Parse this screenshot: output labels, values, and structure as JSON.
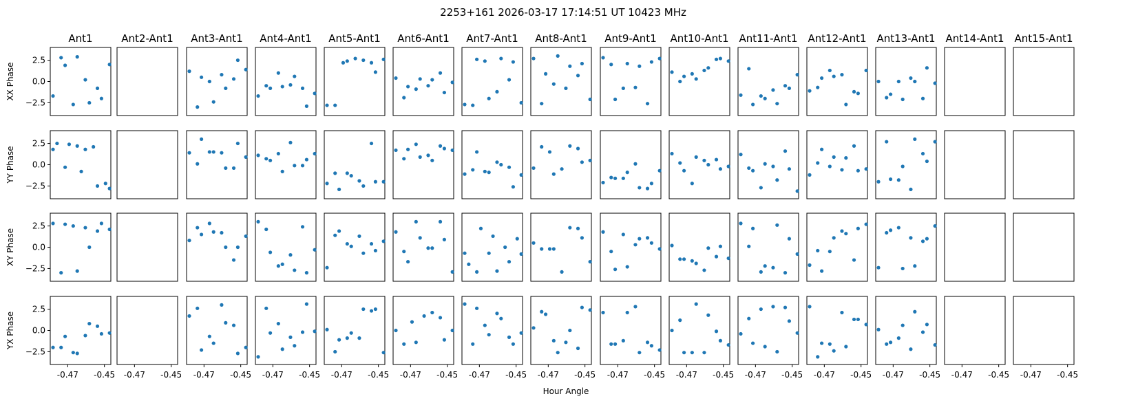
{
  "figure": {
    "title": "2253+161  2026-03-17 17:14:51 UT  10423 MHz",
    "xlabel": "Hour Angle"
  },
  "chart_data": {
    "type": "scatter",
    "point_color": "#1f77b4",
    "columns": [
      "Ant1",
      "Ant2-Ant1",
      "Ant3-Ant1",
      "Ant4-Ant1",
      "Ant5-Ant1",
      "Ant6-Ant1",
      "Ant7-Ant1",
      "Ant8-Ant1",
      "Ant9-Ant1",
      "Ant10-Ant1",
      "Ant11-Ant1",
      "Ant12-Ant1",
      "Ant13-Ant1",
      "Ant14-Ant1",
      "Ant15-Ant1"
    ],
    "rows": [
      "XX Phase",
      "YY Phase",
      "XY Phase",
      "YX Phase"
    ],
    "x": [
      -0.478,
      -0.4758,
      -0.4736,
      -0.4714,
      -0.4692,
      -0.467,
      -0.4648,
      -0.4626,
      -0.4604,
      -0.4582,
      -0.456,
      -0.4538,
      -0.4516,
      -0.4494,
      -0.4472
    ],
    "xlim": [
      -0.4795,
      -0.4465
    ],
    "ylim": [
      -4.0,
      4.0
    ],
    "xticks": [
      -0.47,
      -0.45
    ],
    "xtick_labels": [
      "-0.47",
      "-0.45"
    ],
    "yticks": [
      2.5,
      0.0,
      -2.5
    ],
    "ytick_labels": [
      "2.5",
      "0.0",
      "−2.5"
    ],
    "panels": [
      [
        [
          -1.7,
          2.8,
          1.9,
          -2.7,
          2.9,
          0.2,
          -2.5,
          -0.8,
          -2.0,
          2.0
        ],
        [],
        [
          1.2,
          -3.0,
          0.5,
          0.0,
          -2.4,
          0.8,
          -0.8,
          0.3,
          2.5,
          1.4
        ],
        [
          -1.7,
          -0.5,
          -0.8,
          1.0,
          -0.6,
          -0.4,
          0.6,
          -0.8,
          -2.9,
          -1.4
        ],
        [
          -2.8,
          -2.8,
          2.2,
          2.4,
          2.7,
          2.5,
          2.2,
          1.1,
          2.6
        ],
        [
          0.4,
          -1.9,
          -0.6,
          -0.9,
          0.3,
          -0.5,
          0.2,
          1.0,
          -1.3,
          -0.1
        ],
        [
          -2.7,
          -2.8,
          2.6,
          2.4,
          -2.0,
          -1.2,
          2.7,
          0.2,
          2.3,
          -2.5
        ],
        [
          2.7,
          -2.6,
          0.9,
          -0.3,
          3.0,
          -0.8,
          1.8,
          0.7,
          2.1,
          -2.1
        ],
        [
          2.8,
          2.0,
          -2.1,
          -0.8,
          2.1,
          -0.7,
          1.8,
          -2.6,
          2.3,
          2.7
        ],
        [
          1.1,
          0.0,
          0.6,
          0.9,
          0.3,
          1.3,
          1.6,
          2.6,
          2.7,
          2.4
        ],
        [
          -1.6,
          1.5,
          -2.7,
          -1.7,
          -2.0,
          -1.0,
          -2.6,
          -0.5,
          -0.8,
          0.8
        ],
        [
          -1.1,
          -0.7,
          0.4,
          1.3,
          0.6,
          0.8,
          -2.7,
          -1.2,
          -1.4,
          1.3
        ],
        [
          0.0,
          -1.9,
          -1.5,
          0.0,
          -2.1,
          0.4,
          0.0,
          -2.0,
          1.6,
          -0.2
        ],
        [],
        []
      ],
      [
        [
          1.8,
          2.5,
          -0.3,
          2.4,
          2.2,
          -0.8,
          1.8,
          2.1,
          -2.5,
          -2.2,
          -2.8
        ],
        [],
        [
          1.4,
          0.1,
          3.0,
          1.5,
          1.5,
          1.4,
          -0.4,
          -0.4,
          2.5,
          0.9
        ],
        [
          1.1,
          0.7,
          0.5,
          1.3,
          -0.8,
          2.6,
          -0.1,
          -0.1,
          0.6,
          1.3
        ],
        [
          -2.2,
          -1.0,
          -2.9,
          -1.0,
          -1.3,
          -1.9,
          -2.5,
          2.5,
          -2.0,
          -2.0
        ],
        [
          1.7,
          0.7,
          1.8,
          2.4,
          0.9,
          1.1,
          0.5,
          2.2,
          1.9,
          1.7
        ],
        [
          -1.1,
          -0.6,
          1.5,
          -0.8,
          -0.9,
          0.3,
          0.0,
          -0.3,
          -2.6,
          -1.2
        ],
        [
          -0.4,
          2.1,
          1.5,
          -1.1,
          -0.5,
          2.2,
          1.9,
          0.3,
          0.5
        ],
        [
          -2.1,
          -1.5,
          -1.6,
          -1.6,
          -0.9,
          0.1,
          -2.7,
          -2.8,
          -2.2,
          -0.7
        ],
        [
          1.3,
          0.2,
          -0.7,
          -2.2,
          0.9,
          0.5,
          0.0,
          0.6,
          -0.5,
          -0.2
        ],
        [
          1.2,
          -0.4,
          -0.7,
          -2.7,
          0.1,
          -0.2,
          -1.8,
          1.6,
          -0.5,
          -3.1
        ],
        [
          -1.2,
          0.2,
          1.8,
          -0.2,
          0.9,
          -0.6,
          0.8,
          2.2,
          -0.7,
          -0.5
        ],
        [
          -2.0,
          2.7,
          -1.7,
          -1.8,
          -0.2,
          -2.9,
          3.0,
          1.3,
          0.4,
          2.7
        ],
        [],
        []
      ],
      [
        [
          2.8,
          -3.0,
          2.7,
          2.5,
          -2.8,
          2.3,
          0.0,
          1.9,
          2.8,
          2.1
        ],
        [],
        [
          0.8,
          2.3,
          1.5,
          2.8,
          1.8,
          1.7,
          0.0,
          -1.5,
          0.0,
          1.3
        ],
        [
          3.0,
          2.1,
          -0.6,
          -2.2,
          -2.0,
          -0.9,
          -2.7,
          2.4,
          -3.0,
          -0.3
        ],
        [
          -2.4,
          1.4,
          1.9,
          0.4,
          0.1,
          1.3,
          -0.7,
          0.4,
          -0.4,
          0.7
        ],
        [
          1.8,
          -0.5,
          -1.7,
          3.0,
          1.1,
          -0.1,
          -0.1,
          3.0,
          0.9,
          -2.9
        ],
        [
          -0.7,
          -2.0,
          -2.9,
          2.2,
          -0.7,
          1.3,
          -2.8,
          0.0,
          -1.7,
          1.0,
          -0.8
        ],
        [
          0.5,
          -0.2,
          -0.2,
          -0.2,
          -2.9,
          2.3,
          2.2,
          1.1,
          -1.7
        ],
        [
          1.8,
          -0.5,
          -2.6,
          1.5,
          -2.3,
          0.3,
          1.0,
          1.1,
          0.5,
          -0.2
        ],
        [
          0.2,
          -1.4,
          -1.4,
          -1.6,
          -1.9,
          -2.7,
          -0.1,
          -1.1,
          0.1,
          -1.3
        ],
        [
          2.8,
          0.1,
          2.2,
          -2.9,
          -2.2,
          -2.4,
          2.6,
          -3.0,
          1.0,
          -0.8
        ],
        [
          -2.1,
          -0.4,
          -2.8,
          -0.5,
          1.1,
          1.9,
          1.6,
          -1.5,
          2.2,
          2.7
        ],
        [
          -2.4,
          1.7,
          2.0,
          2.3,
          -2.5,
          1.1,
          -2.2,
          0.7,
          1.0,
          2.5
        ],
        [],
        []
      ],
      [
        [
          -2.0,
          -2.0,
          -0.7,
          -2.6,
          -2.7,
          -0.6,
          0.8,
          0.5,
          -0.4,
          -0.3
        ],
        [],
        [
          1.7,
          2.6,
          -2.3,
          -0.7,
          -1.5,
          3.0,
          0.9,
          0.6,
          -2.7,
          -2.0
        ],
        [
          -3.1,
          2.6,
          -0.3,
          0.8,
          -2.2,
          -0.8,
          -1.8,
          -0.2,
          3.1,
          -0.1
        ],
        [
          0.1,
          -2.5,
          -1.1,
          -0.9,
          -0.3,
          -0.9,
          2.5,
          2.3,
          2.5,
          -2.6
        ],
        [
          0.0,
          -1.6,
          1.0,
          -1.4,
          1.7,
          2.1,
          1.5,
          -1.1,
          0.0
        ],
        [
          3.1,
          -1.6,
          2.6,
          0.6,
          -0.5,
          2.0,
          1.4,
          -0.8,
          -1.6,
          -0.3
        ],
        [
          0.3,
          2.2,
          1.9,
          -1.2,
          -2.6,
          -1.4,
          0.0,
          -2.1,
          2.7,
          2.4
        ],
        [
          2.1,
          -1.6,
          -1.6,
          -1.2,
          2.1,
          2.8,
          -2.6,
          -1.4,
          -1.8,
          -2.3
        ],
        [
          0.0,
          1.2,
          -2.6,
          -2.6,
          3.1,
          -2.6,
          1.8,
          -0.1,
          -1.2,
          -1.7
        ],
        [
          -0.4,
          1.4,
          -1.5,
          2.5,
          -1.9,
          2.8,
          -2.5,
          2.7,
          1.1,
          -0.3
        ],
        [
          2.8,
          -3.1,
          -1.5,
          -1.6,
          -2.4,
          2.1,
          -1.9,
          1.3,
          1.3,
          0.7
        ],
        [
          0.1,
          -1.6,
          -1.4,
          -0.9,
          0.6,
          -2.2,
          2.2,
          -0.2,
          0.7,
          -1.7
        ],
        [],
        []
      ]
    ]
  }
}
